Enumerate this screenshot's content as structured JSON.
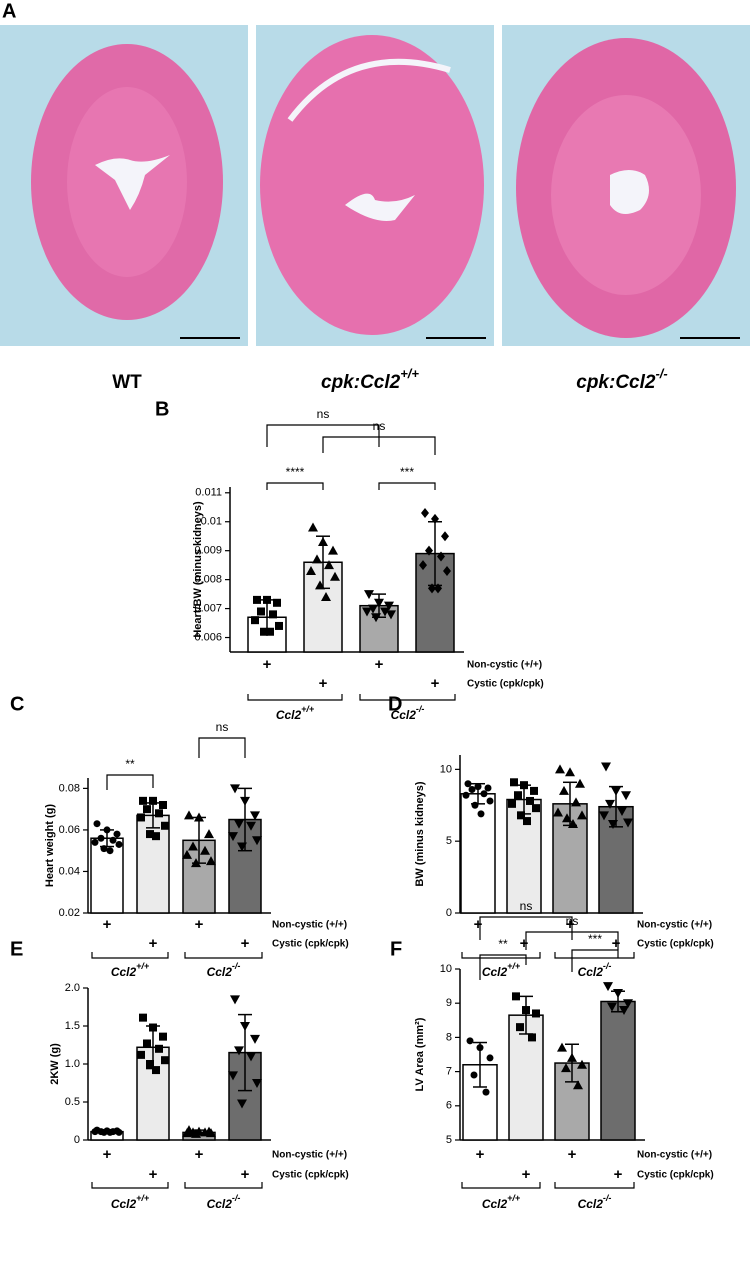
{
  "figure": {
    "panel": "A",
    "images": [
      {
        "text": "WT"
      },
      {
        "text": "cpk:Ccl2",
        "sup": "+/+"
      },
      {
        "text": "cpk:Ccl2",
        "sup": "-/-"
      }
    ]
  },
  "chart_data": [
    {
      "type": "bar",
      "panel": "B",
      "ylabel": "Heart/BW (minus kidneys)",
      "ylim": [
        0.0055,
        0.0112
      ],
      "yticks": [
        0.006,
        0.007,
        0.008,
        0.009,
        0.01,
        0.011
      ],
      "values": [
        0.0067,
        0.0086,
        0.0071,
        0.0089
      ],
      "errors": [
        0.0006,
        0.0009,
        0.0004,
        0.0011
      ],
      "colors": [
        "#ffffff",
        "#ebebeb",
        "#a9a9a9",
        "#6d6d6d"
      ],
      "points": [
        [
          0.0073,
          0.0073,
          0.0072,
          0.0069,
          0.0068,
          0.0066,
          0.0064,
          0.0062,
          0.0062
        ],
        [
          0.0098,
          0.0093,
          0.009,
          0.0087,
          0.0085,
          0.0083,
          0.0081,
          0.0078,
          0.0074
        ],
        [
          0.0075,
          0.0072,
          0.0071,
          0.007,
          0.0069,
          0.0069,
          0.0068,
          0.0067
        ],
        [
          0.0103,
          0.0101,
          0.0095,
          0.009,
          0.0088,
          0.0085,
          0.0083,
          0.0077,
          0.0077
        ]
      ],
      "significance": [
        "ns",
        "****",
        "ns",
        "***"
      ],
      "rows": [
        {
          "label": "Non-cystic (+/+)",
          "marks": [
            "+",
            null,
            "+",
            null
          ]
        },
        {
          "label": "Cystic (cpk/cpk)",
          "marks": [
            null,
            "+",
            null,
            "+"
          ]
        }
      ],
      "groups": [
        {
          "name": "Ccl2",
          "sup": "+/+"
        },
        {
          "name": "Ccl2",
          "sup": "-/-"
        }
      ]
    },
    {
      "type": "bar",
      "panel": "C",
      "ylabel": "Heart weight (g)",
      "ylim": [
        0.02,
        0.085
      ],
      "yticks": [
        0.02,
        0.04,
        0.06,
        0.08
      ],
      "values": [
        0.056,
        0.067,
        0.055,
        0.065
      ],
      "errors": [
        0.004,
        0.006,
        0.011,
        0.015
      ],
      "colors": [
        "#ffffff",
        "#ebebeb",
        "#a9a9a9",
        "#6d6d6d"
      ],
      "points": [
        [
          0.063,
          0.06,
          0.058,
          0.056,
          0.055,
          0.054,
          0.053,
          0.051,
          0.05
        ],
        [
          0.074,
          0.074,
          0.072,
          0.07,
          0.068,
          0.066,
          0.062,
          0.058,
          0.057
        ],
        [
          0.067,
          0.066,
          0.058,
          0.052,
          0.05,
          0.048,
          0.045,
          0.044
        ],
        [
          0.08,
          0.074,
          0.067,
          0.063,
          0.062,
          0.057,
          0.055,
          0.052
        ]
      ],
      "significance": [
        "**",
        "ns"
      ],
      "rows": [
        {
          "label": "Non-cystic (+/+)",
          "marks": [
            "+",
            null,
            "+",
            null
          ]
        },
        {
          "label": "Cystic (cpk/cpk)",
          "marks": [
            null,
            "+",
            null,
            "+"
          ]
        }
      ],
      "groups": [
        {
          "name": "Ccl2",
          "sup": "+/+"
        },
        {
          "name": "Ccl2",
          "sup": "-/-"
        }
      ]
    },
    {
      "type": "bar",
      "panel": "D",
      "ylabel": "BW (minus kidneys)",
      "ylim": [
        0,
        11
      ],
      "yticks": [
        0,
        5,
        10
      ],
      "values": [
        8.3,
        7.9,
        7.6,
        7.4
      ],
      "errors": [
        0.7,
        1.0,
        1.5,
        1.4
      ],
      "colors": [
        "#ffffff",
        "#ebebeb",
        "#a9a9a9",
        "#6d6d6d"
      ],
      "points": [
        [
          9.0,
          8.8,
          8.7,
          8.6,
          8.3,
          8.2,
          7.8,
          7.5,
          6.9
        ],
        [
          9.1,
          8.9,
          8.5,
          8.2,
          7.8,
          7.6,
          7.3,
          6.8,
          6.4
        ],
        [
          10.0,
          9.8,
          9.0,
          8.5,
          7.7,
          7.0,
          6.8,
          6.6,
          6.2
        ],
        [
          10.2,
          8.5,
          8.2,
          7.6,
          7.1,
          6.8,
          6.3,
          6.2
        ]
      ],
      "significance": [],
      "rows": [
        {
          "label": "Non-cystic (+/+)",
          "marks": [
            "+",
            null,
            "+",
            null
          ]
        },
        {
          "label": "Cystic (cpk/cpk)",
          "marks": [
            null,
            "+",
            null,
            "+"
          ]
        }
      ],
      "groups": [
        {
          "name": "Ccl2",
          "sup": "+/+"
        },
        {
          "name": "Ccl2",
          "sup": "-/-"
        }
      ]
    },
    {
      "type": "bar",
      "panel": "E",
      "ylabel": "2KW (g)",
      "ylim": [
        0,
        2
      ],
      "yticks": [
        0,
        0.5,
        {
          "value": 1,
          "label": "1.0"
        },
        1.5,
        {
          "value": 2,
          "label": "2.0"
        }
      ],
      "values": [
        0.11,
        1.22,
        0.1,
        1.15
      ],
      "errors": [
        0.02,
        0.28,
        0.03,
        0.5
      ],
      "colors": [
        "#ffffff",
        "#ebebeb",
        "#a9a9a9",
        "#6d6d6d"
      ],
      "points": [
        [
          0.13,
          0.12,
          0.12,
          0.11,
          0.11,
          0.11,
          0.1,
          0.1,
          0.1
        ],
        [
          1.61,
          1.48,
          1.36,
          1.27,
          1.2,
          1.12,
          1.05,
          1.0,
          0.92
        ],
        [
          0.13,
          0.11,
          0.11,
          0.1,
          0.1,
          0.09,
          0.09,
          0.08
        ],
        [
          1.85,
          1.5,
          1.33,
          1.18,
          1.1,
          0.85,
          0.75,
          0.48
        ]
      ],
      "significance": [],
      "rows": [
        {
          "label": "Non-cystic (+/+)",
          "marks": [
            "+",
            null,
            "+",
            null
          ]
        },
        {
          "label": "Cystic (cpk/cpk)",
          "marks": [
            null,
            "+",
            null,
            "+"
          ]
        }
      ],
      "groups": [
        {
          "name": "Ccl2",
          "sup": "+/+"
        },
        {
          "name": "Ccl2",
          "sup": "-/-"
        }
      ]
    },
    {
      "type": "bar",
      "panel": "F",
      "ylabel": "LV Area (mm²)",
      "ylim": [
        5,
        10
      ],
      "yticks": [
        5,
        6,
        7,
        8,
        9,
        10
      ],
      "values": [
        7.2,
        8.65,
        7.25,
        9.05
      ],
      "errors": [
        0.65,
        0.55,
        0.55,
        0.3
      ],
      "colors": [
        "#ffffff",
        "#ebebeb",
        "#a9a9a9",
        "#6d6d6d"
      ],
      "points": [
        [
          7.9,
          7.7,
          7.4,
          6.9,
          6.4
        ],
        [
          9.2,
          8.8,
          8.7,
          8.3,
          8.0
        ],
        [
          7.7,
          7.4,
          7.2,
          7.1,
          6.6
        ],
        [
          9.5,
          9.3,
          9.0,
          8.9,
          8.8
        ]
      ],
      "significance": [
        "ns",
        "**",
        "ns",
        "***"
      ],
      "rows": [
        {
          "label": "Non-cystic (+/+)",
          "marks": [
            "+",
            null,
            "+",
            null
          ]
        },
        {
          "label": "Cystic (cpk/cpk)",
          "marks": [
            null,
            "+",
            null,
            "+"
          ]
        }
      ],
      "groups": [
        {
          "name": "Ccl2",
          "sup": "+/+"
        },
        {
          "name": "Ccl2",
          "sup": "-/-"
        }
      ]
    }
  ]
}
